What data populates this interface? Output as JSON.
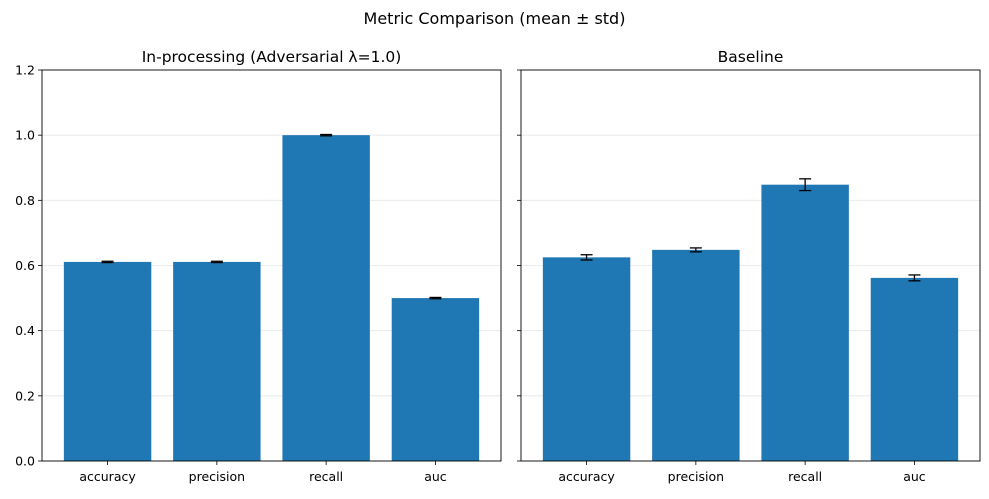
{
  "figure": {
    "suptitle": "Metric Comparison (mean ± std)"
  },
  "chart_data": [
    {
      "type": "bar",
      "title": "In-processing (Adversarial λ=1.0)",
      "xlabel": "",
      "ylabel": "",
      "categories": [
        "accuracy",
        "precision",
        "recall",
        "auc"
      ],
      "values": [
        0.611,
        0.611,
        1.0,
        0.5
      ],
      "errors": [
        0.002,
        0.002,
        0.002,
        0.002
      ],
      "ylim": [
        0,
        1.2
      ],
      "yticks": [
        "0.0",
        "0.2",
        "0.4",
        "0.6",
        "0.8",
        "1.0",
        "1.2"
      ],
      "bar_color": "#1f77b4",
      "grid": "y"
    },
    {
      "type": "bar",
      "title": "Baseline",
      "xlabel": "",
      "ylabel": "",
      "categories": [
        "accuracy",
        "precision",
        "recall",
        "auc"
      ],
      "values": [
        0.625,
        0.648,
        0.848,
        0.562
      ],
      "errors": [
        0.008,
        0.006,
        0.018,
        0.009
      ],
      "ylim": [
        0,
        1.2
      ],
      "yticks": [
        "",
        "",
        "",
        "",
        "",
        "",
        ""
      ],
      "bar_color": "#1f77b4",
      "grid": "y"
    }
  ]
}
